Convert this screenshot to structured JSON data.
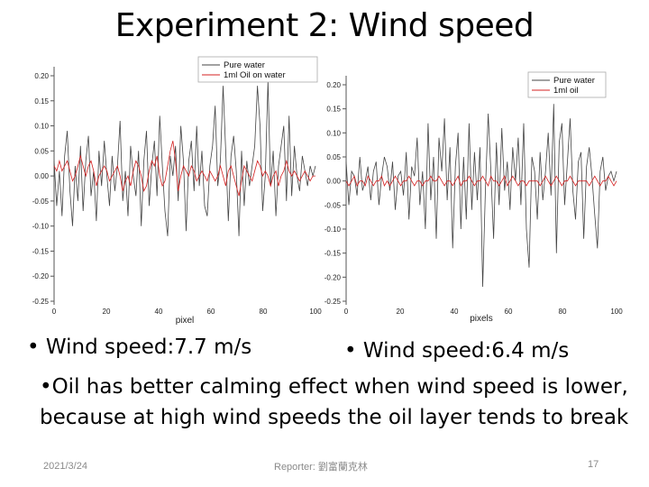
{
  "slide": {
    "title": "Experiment 2: Wind speed",
    "bullet_left": "Wind speed:7.7 m/s",
    "bullet_right": "Wind speed:6.4 m/s",
    "paragraph": "Oil has better calming effect when wind speed is lower, because at high wind speeds the oil layer tends to break",
    "bullet_glyph": "•",
    "footer": {
      "date": "2021/3/24",
      "reporter": "Reporter: 劉富蘭克林",
      "page": "17"
    }
  },
  "chart_data": [
    {
      "type": "line",
      "title": "",
      "xlabel": "pixel",
      "ylabel": "",
      "xlim": [
        0,
        100
      ],
      "ylim": [
        -0.25,
        0.2
      ],
      "xticks": [
        "0",
        "20",
        "40",
        "60",
        "80",
        "100"
      ],
      "yticks": [
        "0.20",
        "0.15",
        "0.10",
        "0.05",
        "0.00",
        "-0.05",
        "-0.10",
        "-0.15",
        "-0.20",
        "-0.25"
      ],
      "legend_position": "top",
      "series": [
        {
          "name": "Pure water",
          "color": "#444444",
          "values": [
            0.03,
            -0.06,
            0.01,
            -0.08,
            0.04,
            0.09,
            -0.03,
            -0.1,
            0.02,
            -0.05,
            0.06,
            -0.07,
            0.03,
            0.08,
            -0.04,
            0.01,
            -0.09,
            0.05,
            -0.02,
            0.07,
            0.0,
            -0.06,
            0.04,
            -0.03,
            0.02,
            0.11,
            -0.05,
            0.01,
            -0.08,
            0.06,
            0.0,
            -0.04,
            0.05,
            -0.1,
            0.03,
            0.09,
            -0.06,
            0.02,
            0.07,
            -0.04,
            0.12,
            0.02,
            -0.07,
            -0.12,
            0.04,
            0.0,
            0.06,
            -0.05,
            0.1,
            0.03,
            -0.11,
            0.03,
            0.07,
            -0.03,
            0.1,
            -0.02,
            0.05,
            -0.06,
            -0.08,
            0.02,
            0.06,
            0.14,
            -0.02,
            0.03,
            0.18,
            0.05,
            -0.09,
            0.04,
            0.08,
            0.01,
            -0.12,
            0.05,
            -0.06,
            0.03,
            -0.02,
            0.02,
            0.06,
            0.18,
            0.1,
            -0.07,
            0.0,
            0.19,
            -0.02,
            0.05,
            -0.08,
            0.02,
            0.06,
            0.1,
            -0.05,
            0.12,
            -0.04,
            0.06,
            0.0,
            -0.03,
            0.04,
            0.01,
            -0.02,
            0.02,
            0.0,
            0.02
          ]
        },
        {
          "name": "1ml Oil on water",
          "color": "#d42020",
          "values": [
            0.02,
            0.01,
            0.03,
            0.01,
            0.02,
            0.03,
            0.01,
            -0.01,
            0.0,
            0.02,
            0.04,
            0.02,
            0.0,
            0.02,
            0.03,
            0.01,
            -0.02,
            0.0,
            0.01,
            0.02,
            0.01,
            -0.01,
            0.0,
            0.01,
            0.02,
            0.0,
            -0.03,
            -0.01,
            0.0,
            -0.02,
            0.01,
            0.03,
            0.02,
            0.0,
            -0.03,
            -0.02,
            0.01,
            0.03,
            0.02,
            0.04,
            0.0,
            -0.02,
            -0.01,
            0.02,
            0.05,
            0.07,
            0.03,
            -0.03,
            0.0,
            0.02,
            0.01,
            0.0,
            0.02,
            0.01,
            -0.01,
            0.0,
            0.01,
            0.0,
            -0.01,
            0.01,
            0.0,
            -0.01,
            0.0,
            0.02,
            0.0,
            -0.02,
            0.01,
            0.02,
            0.0,
            -0.02,
            -0.04,
            -0.01,
            0.02,
            0.01,
            0.0,
            -0.01,
            0.01,
            0.03,
            0.02,
            0.0,
            0.01,
            0.0,
            -0.02,
            0.0,
            0.01,
            -0.02,
            0.0,
            0.01,
            0.03,
            0.01,
            0.0,
            0.01,
            0.0,
            -0.01,
            0.0,
            0.01,
            0.0,
            -0.01,
            0.0,
            0.0
          ]
        }
      ]
    },
    {
      "type": "line",
      "title": "",
      "xlabel": "pixels",
      "ylabel": "",
      "xlim": [
        0,
        100
      ],
      "ylim": [
        -0.25,
        0.2
      ],
      "xticks": [
        "0",
        "20",
        "40",
        "60",
        "80",
        "100"
      ],
      "yticks": [
        "0.20",
        "0.15",
        "0.10",
        "0.05",
        "0.00",
        "-0.05",
        "-0.10",
        "-0.15",
        "-0.20",
        "-0.25"
      ],
      "legend_position": "top-right",
      "series": [
        {
          "name": "Pure water",
          "color": "#444444",
          "values": [
            0.04,
            -0.05,
            0.02,
            0.01,
            -0.03,
            0.05,
            -0.02,
            0.0,
            0.03,
            -0.04,
            0.02,
            0.04,
            -0.05,
            0.01,
            0.05,
            0.03,
            -0.02,
            0.04,
            -0.06,
            0.01,
            0.02,
            -0.03,
            0.06,
            -0.08,
            0.03,
            0.01,
            0.09,
            -0.05,
            0.02,
            -0.1,
            0.12,
            -0.04,
            0.05,
            -0.12,
            0.09,
            0.02,
            0.13,
            -0.04,
            0.07,
            -0.14,
            0.03,
            0.1,
            -0.1,
            0.05,
            -0.08,
            0.12,
            -0.06,
            0.06,
            -0.04,
            0.07,
            -0.22,
            -0.02,
            0.14,
            0.02,
            -0.12,
            0.08,
            -0.05,
            0.11,
            -0.02,
            0.04,
            -0.06,
            0.07,
            0.0,
            0.09,
            -0.05,
            0.12,
            -0.1,
            -0.18,
            0.05,
            0.02,
            -0.08,
            0.06,
            -0.04,
            0.02,
            0.1,
            -0.03,
            0.16,
            -0.15,
            0.08,
            0.12,
            -0.05,
            0.04,
            0.13,
            -0.02,
            -0.08,
            0.04,
            0.06,
            -0.12,
            0.03,
            0.07,
            0.01,
            -0.07,
            -0.14,
            0.02,
            0.05,
            -0.02,
            0.01,
            0.02,
            0.0,
            0.02
          ]
        },
        {
          "name": "1ml oil",
          "color": "#d42020",
          "values": [
            0.0,
            -0.01,
            0.0,
            0.01,
            -0.01,
            0.0,
            0.0,
            -0.01,
            0.01,
            0.0,
            -0.01,
            0.0,
            0.0,
            0.01,
            -0.01,
            0.0,
            -0.01,
            0.0,
            0.01,
            0.0,
            -0.01,
            0.0,
            0.0,
            0.01,
            0.0,
            -0.01,
            0.0,
            0.0,
            -0.01,
            0.0,
            0.0,
            0.01,
            0.0,
            0.0,
            0.01,
            0.0,
            -0.01,
            0.0,
            0.0,
            -0.01,
            0.0,
            0.01,
            -0.01,
            0.0,
            0.0,
            0.01,
            0.0,
            -0.01,
            0.0,
            0.0,
            0.01,
            0.0,
            -0.01,
            0.01,
            0.0,
            0.0,
            -0.01,
            0.0,
            0.01,
            -0.01,
            0.0,
            0.01,
            0.0,
            -0.01,
            0.0,
            0.0,
            -0.01,
            0.0,
            0.0,
            0.0,
            0.0,
            -0.01,
            0.0,
            0.01,
            0.0,
            -0.01,
            0.0,
            0.01,
            0.0,
            -0.01,
            0.0,
            0.0,
            0.01,
            0.0,
            -0.01,
            0.0,
            0.0,
            0.0,
            0.0,
            -0.01,
            0.0,
            0.01,
            0.0,
            -0.01,
            0.0,
            0.0,
            0.01,
            0.0,
            -0.01,
            0.0
          ]
        }
      ]
    }
  ]
}
